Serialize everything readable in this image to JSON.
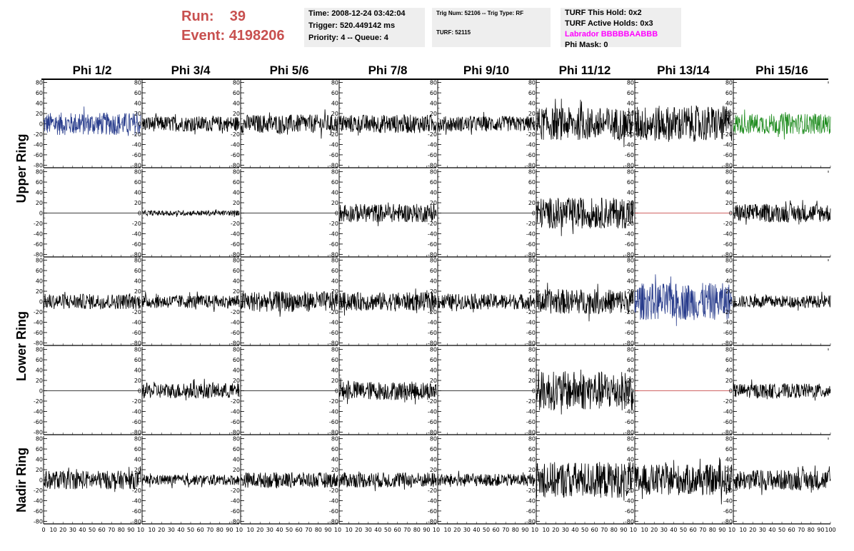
{
  "header": {
    "run_label": "Run:",
    "run_value": "39",
    "event_label": "Event:",
    "event_value": "4198206",
    "time": "Time: 2008-12-24 03:42:04",
    "trigger": "Trigger: 520.449142 ms",
    "priority": "Priority: 4 -- Queue: 4",
    "trig_num": "Trig Num: 52106 -- Trig Type: RF",
    "turf": "TURF: 52115",
    "turf_this_hold": "TURF This Hold: 0x2",
    "turf_active_holds": "TURF Active Holds: 0x3",
    "labrador": "Labrador BBBBBAABBB",
    "phi_mask": "Phi Mask: 0"
  },
  "colors": {
    "header_red": "#c8504f",
    "labrador_magenta": "#ff00ff",
    "trace_black": "#000000",
    "trace_blue": "#283c8c",
    "trace_green": "#1e8c1e",
    "trace_red": "#c03030"
  },
  "chart_data": {
    "type": "line",
    "columns": [
      "Phi 1/2",
      "Phi 3/4",
      "Phi 5/6",
      "Phi 7/8",
      "Phi 9/10",
      "Phi 11/12",
      "Phi 13/14",
      "Phi 15/16"
    ],
    "ring_labels": [
      {
        "name": "Upper Ring",
        "rows": [
          0,
          1
        ]
      },
      {
        "name": "Lower Ring",
        "rows": [
          2,
          3
        ]
      },
      {
        "name": "Nadir Ring",
        "rows": [
          4
        ]
      }
    ],
    "xlim": [
      0,
      100
    ],
    "ylim": [
      -85,
      85
    ],
    "y_ticks": [
      80,
      60,
      40,
      20,
      0,
      -20,
      -40,
      -60,
      -80
    ],
    "x_ticks": [
      0,
      10,
      20,
      30,
      40,
      50,
      60,
      70,
      80,
      90
    ],
    "x_last_tick": "100",
    "grid": false,
    "panels": [
      [
        {
          "color": "blue",
          "amp": 22
        },
        {
          "color": "black",
          "amp": 15
        },
        {
          "color": "black",
          "amp": 18
        },
        {
          "color": "black",
          "amp": 18
        },
        {
          "color": "black",
          "amp": 15
        },
        {
          "color": "black",
          "amp": 32
        },
        {
          "color": "black",
          "amp": 35
        },
        {
          "color": "green",
          "amp": 20
        }
      ],
      [
        {
          "color": "black",
          "amp": 0
        },
        {
          "color": "black",
          "amp": 5
        },
        {
          "color": "black",
          "amp": 0
        },
        {
          "color": "black",
          "amp": 18
        },
        {
          "color": "black",
          "amp": 0
        },
        {
          "color": "black",
          "amp": 30
        },
        {
          "color": "red",
          "amp": 0
        },
        {
          "color": "black",
          "amp": 18
        }
      ],
      [
        {
          "color": "black",
          "amp": 15
        },
        {
          "color": "black",
          "amp": 13
        },
        {
          "color": "black",
          "amp": 20
        },
        {
          "color": "black",
          "amp": 18
        },
        {
          "color": "black",
          "amp": 15
        },
        {
          "color": "black",
          "amp": 24
        },
        {
          "color": "blue",
          "amp": 36
        },
        {
          "color": "black",
          "amp": 12
        }
      ],
      [
        {
          "color": "black",
          "amp": 0
        },
        {
          "color": "black",
          "amp": 15
        },
        {
          "color": "black",
          "amp": 0
        },
        {
          "color": "black",
          "amp": 18
        },
        {
          "color": "black",
          "amp": 0
        },
        {
          "color": "black",
          "amp": 38
        },
        {
          "color": "red",
          "amp": 0
        },
        {
          "color": "black",
          "amp": 14
        }
      ],
      [
        {
          "color": "black",
          "amp": 18
        },
        {
          "color": "black",
          "amp": 10
        },
        {
          "color": "black",
          "amp": 15
        },
        {
          "color": "black",
          "amp": 15
        },
        {
          "color": "black",
          "amp": 12
        },
        {
          "color": "black",
          "amp": 35
        },
        {
          "color": "black",
          "amp": 30
        },
        {
          "color": "black",
          "amp": 20
        }
      ]
    ]
  }
}
